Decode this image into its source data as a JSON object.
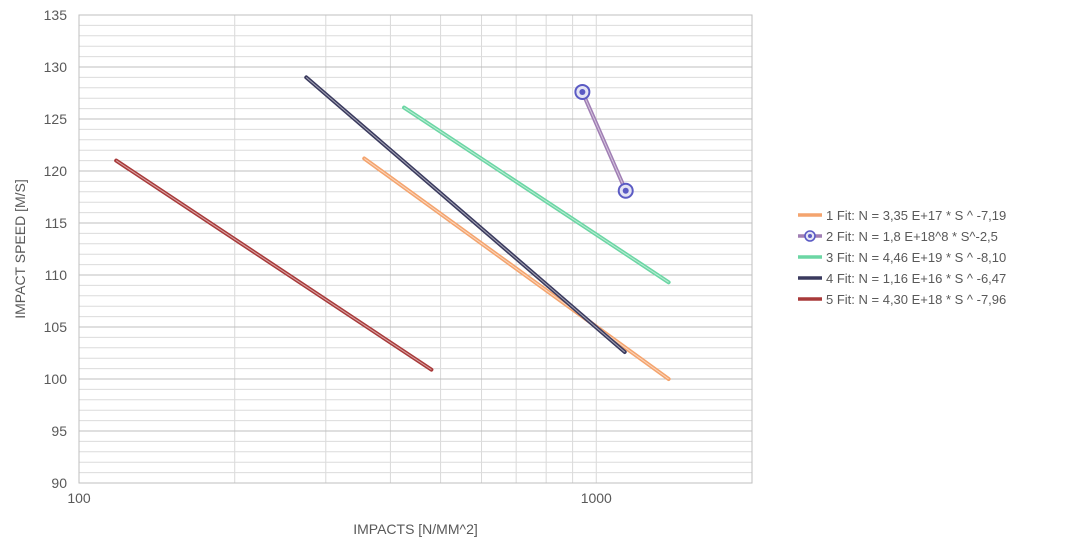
{
  "chart_data": {
    "type": "line",
    "title": "",
    "xlabel": "IMPACTS [N/MM^2]",
    "ylabel": "IMPACT SPEED [M/S]",
    "x_scale": "log",
    "xlim": [
      100,
      2000
    ],
    "ylim": [
      90,
      135
    ],
    "x_major_ticks": [
      100,
      1000
    ],
    "x_tick_labels": [
      "100",
      "1000"
    ],
    "y_ticks": [
      90,
      95,
      100,
      105,
      110,
      115,
      120,
      125,
      130,
      135
    ],
    "y_tick_labels": [
      "90",
      "95",
      "100",
      "105",
      "110",
      "115",
      "120",
      "125",
      "130",
      "135"
    ],
    "grid": true,
    "legend_position": "right",
    "series": [
      {
        "name": "1 Fit: N = 3,35 E+17  * S ^ -7,19",
        "color": "#F4A46E",
        "marker": "none",
        "x": [
          356,
          1380
        ],
        "y": [
          121.2,
          100.0
        ]
      },
      {
        "name": "2 Fit: N = 1,8 E+18^8 * S^-2,5",
        "color": "#A07EB4",
        "marker": "circle",
        "marker_color": "#5B5BC4",
        "x": [
          940,
          1140
        ],
        "y": [
          127.6,
          118.1
        ]
      },
      {
        "name": "3 Fit: N = 4,46 E+19  * S ^ -8,10",
        "color": "#6BD6A4",
        "marker": "none",
        "x": [
          425,
          1380
        ],
        "y": [
          126.1,
          109.3
        ]
      },
      {
        "name": "4 Fit: N = 1,16 E+16  * S ^ -6,47",
        "color": "#3A3A5E",
        "marker": "none",
        "x": [
          275,
          1135
        ],
        "y": [
          129.0,
          102.6
        ]
      },
      {
        "name": "5 Fit: N = 4,30 E+18  * S ^ -7,96",
        "color": "#A83A3A",
        "marker": "none",
        "x": [
          118,
          480
        ],
        "y": [
          121.0,
          100.9
        ]
      }
    ]
  }
}
